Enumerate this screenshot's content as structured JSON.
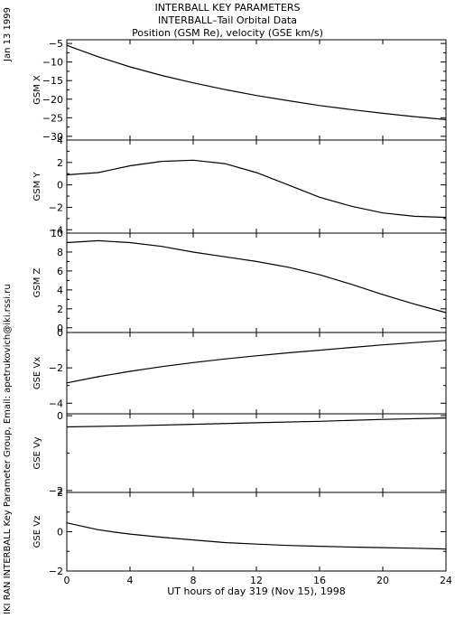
{
  "header": {
    "line1": "INTERBALL KEY PARAMETERS",
    "line2": "INTERBALL–Tail Orbital Data",
    "line3": "Position (GSM Re), velocity (GSE km/s)"
  },
  "date_stamp": "Jan 13 1999",
  "credit": "IKI RAN INTERBALL Key Parameter Group, Email: apetrukovich@iki.rssi.ru",
  "xaxis_title": "UT hours of day 319 (Nov 15), 1998",
  "chart_data": [
    {
      "type": "line",
      "ylabel": "GSM X",
      "xlim": [
        0,
        24
      ],
      "ylim": [
        -31,
        -4
      ],
      "xticks": [
        0,
        4,
        8,
        12,
        16,
        20,
        24
      ],
      "yticks": [
        -30,
        -25,
        -20,
        -15,
        -10,
        -5
      ],
      "x": [
        0,
        2,
        4,
        6,
        8,
        10,
        12,
        14,
        16,
        18,
        20,
        22,
        24
      ],
      "values": [
        -5.5,
        -8.6,
        -11.3,
        -13.6,
        -15.6,
        -17.4,
        -19.0,
        -20.4,
        -21.7,
        -22.8,
        -23.8,
        -24.7,
        -25.5
      ]
    },
    {
      "type": "line",
      "ylabel": "GSM Y",
      "xlim": [
        0,
        24
      ],
      "ylim": [
        -4.3,
        4
      ],
      "xticks": [
        0,
        4,
        8,
        12,
        16,
        20,
        24
      ],
      "yticks": [
        -4,
        -2,
        0,
        2,
        4
      ],
      "x": [
        0,
        2,
        4,
        6,
        8,
        10,
        12,
        14,
        16,
        18,
        20,
        22,
        24
      ],
      "values": [
        0.9,
        1.1,
        1.7,
        2.1,
        2.2,
        1.9,
        1.1,
        0.0,
        -1.1,
        -1.9,
        -2.5,
        -2.8,
        -2.9
      ]
    },
    {
      "type": "line",
      "ylabel": "GSM Z",
      "xlim": [
        0,
        24
      ],
      "ylim": [
        -0.5,
        10
      ],
      "xticks": [
        0,
        4,
        8,
        12,
        16,
        20,
        24
      ],
      "yticks": [
        0,
        2,
        4,
        6,
        8,
        10
      ],
      "x": [
        0,
        2,
        4,
        6,
        8,
        10,
        12,
        14,
        16,
        18,
        20,
        22,
        24
      ],
      "values": [
        9.0,
        9.2,
        9.0,
        8.6,
        8.0,
        7.5,
        7.0,
        6.4,
        5.6,
        4.6,
        3.5,
        2.5,
        1.6
      ]
    },
    {
      "type": "line",
      "ylabel": "GSE Vx",
      "xlim": [
        0,
        24
      ],
      "ylim": [
        -4.6,
        0
      ],
      "xticks": [
        0,
        4,
        8,
        12,
        16,
        20,
        24
      ],
      "yticks": [
        -4,
        -2,
        0
      ],
      "x": [
        0,
        2,
        4,
        6,
        8,
        10,
        12,
        14,
        16,
        18,
        20,
        22,
        24
      ],
      "values": [
        -2.85,
        -2.5,
        -2.2,
        -1.93,
        -1.7,
        -1.5,
        -1.32,
        -1.15,
        -1.0,
        -0.85,
        -0.7,
        -0.57,
        -0.45
      ]
    },
    {
      "type": "line",
      "ylabel": "GSE Vy",
      "xlim": [
        0,
        24
      ],
      "ylim": [
        -2.05,
        0.05
      ],
      "xticks": [
        0,
        4,
        8,
        12,
        16,
        20,
        24
      ],
      "yticks": [
        -2,
        0
      ],
      "x": [
        0,
        4,
        8,
        12,
        16,
        20,
        24
      ],
      "values": [
        -0.3,
        -0.27,
        -0.23,
        -0.19,
        -0.15,
        -0.1,
        -0.06
      ]
    },
    {
      "type": "line",
      "ylabel": "GSE Vz",
      "xlim": [
        0,
        24
      ],
      "ylim": [
        -2,
        2
      ],
      "xticks": [
        0,
        4,
        8,
        12,
        16,
        20,
        24
      ],
      "yticks": [
        -2,
        0,
        2
      ],
      "x": [
        0,
        1,
        2,
        3,
        4,
        6,
        8,
        10,
        12,
        14,
        16,
        18,
        20,
        22,
        24
      ],
      "values": [
        0.45,
        0.27,
        0.1,
        -0.02,
        -0.12,
        -0.28,
        -0.42,
        -0.55,
        -0.63,
        -0.7,
        -0.74,
        -0.78,
        -0.81,
        -0.84,
        -0.88
      ]
    }
  ]
}
